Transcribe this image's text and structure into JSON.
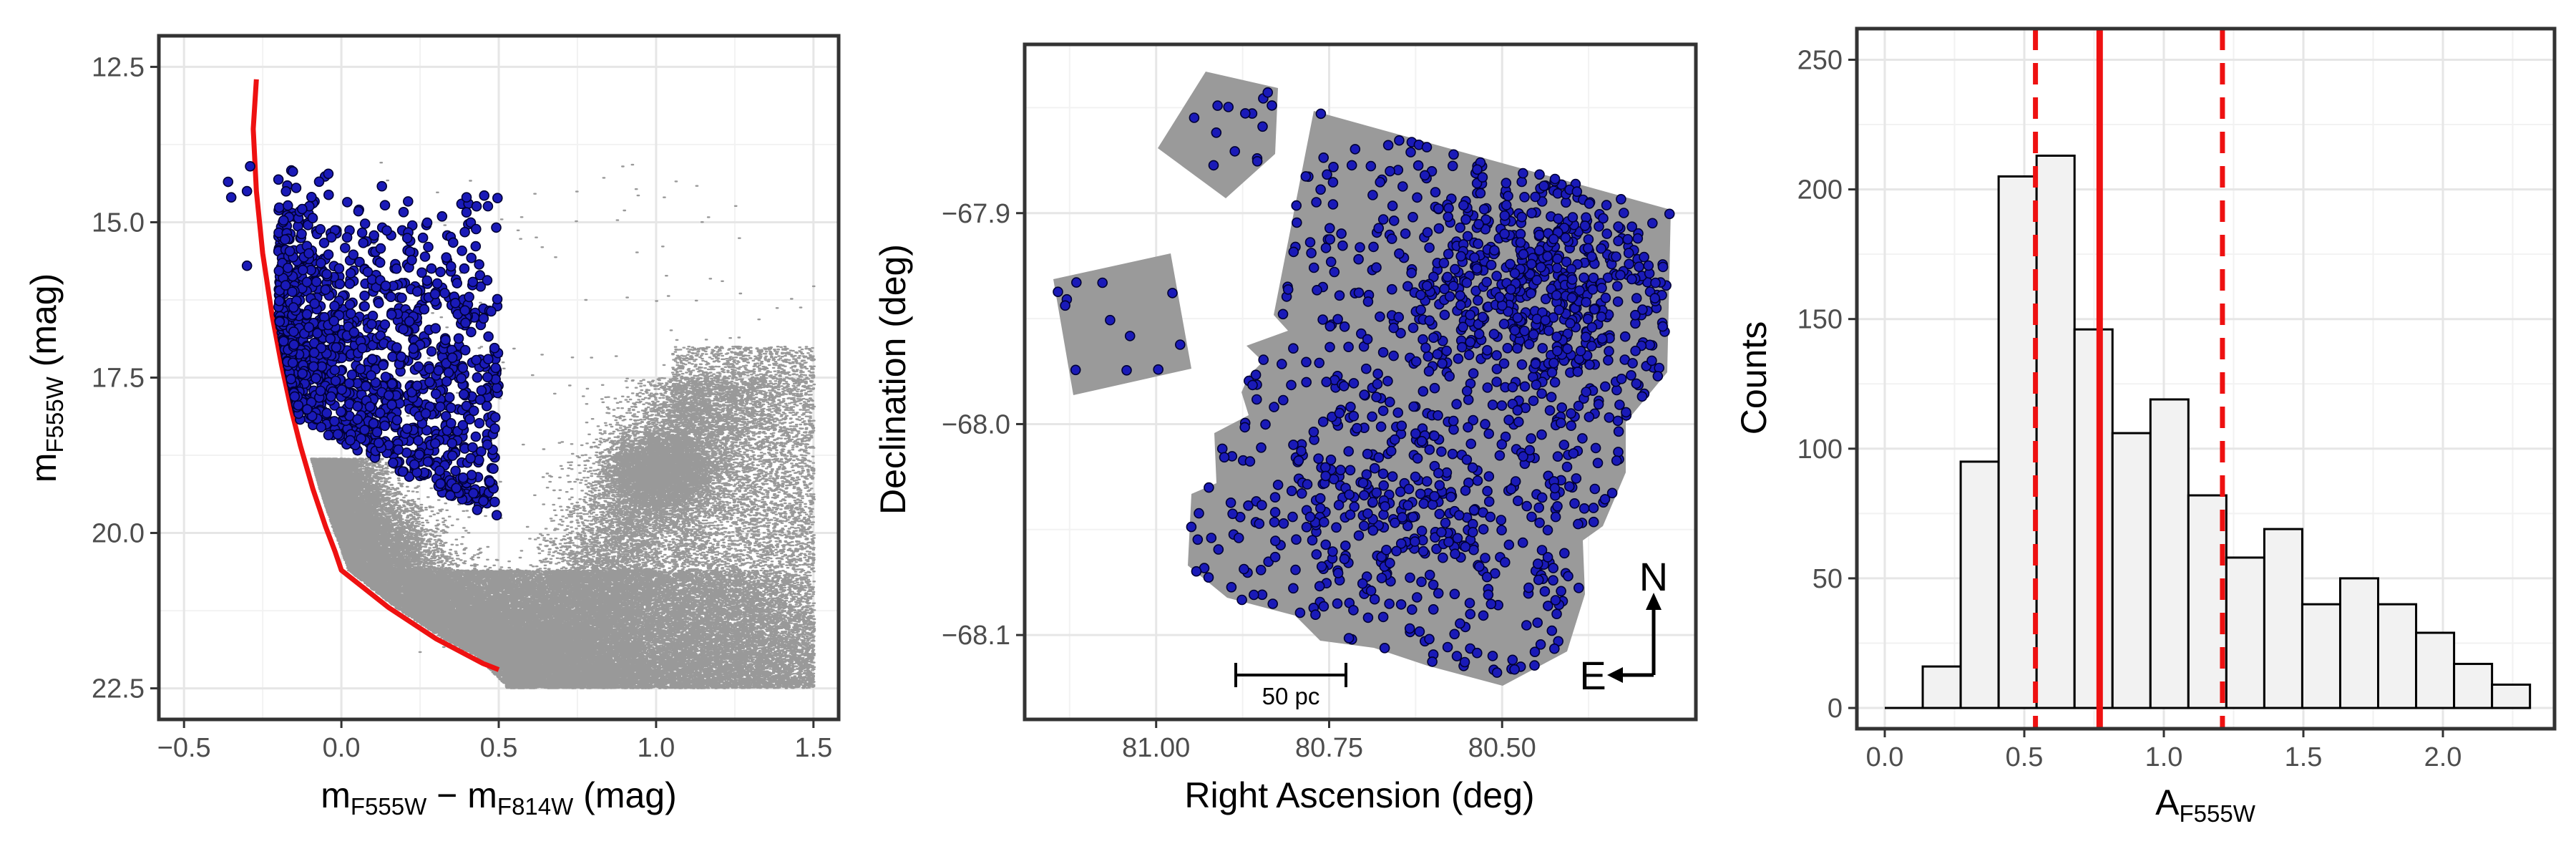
{
  "chart_data": [
    {
      "type": "scatter",
      "xlabel": {
        "main": "m",
        "sub1": "F555W",
        "minus": " − m",
        "sub2": "F814W",
        "unit": " (mag)"
      },
      "ylabel": {
        "main": "m",
        "sub": "F555W",
        "unit": " (mag)"
      },
      "xlim": [
        -0.58,
        1.58
      ],
      "ylim": [
        23.0,
        12.0
      ],
      "y_reversed": true,
      "xticks": [
        -0.5,
        0.0,
        0.5,
        1.0,
        1.5
      ],
      "xtick_labels": [
        "−0.5",
        "0.0",
        "0.5",
        "1.0",
        "1.5"
      ],
      "yticks": [
        12.5,
        15.0,
        17.5,
        20.0,
        22.5
      ],
      "ytick_labels": [
        "12.5",
        "15.0",
        "17.5",
        "20.0",
        "22.5"
      ],
      "grid": true,
      "isochrone": {
        "color": "#ee1111",
        "x": [
          -0.27,
          -0.28,
          -0.27,
          -0.25,
          -0.22,
          -0.19,
          -0.16,
          -0.13,
          -0.09,
          -0.05,
          -0.02,
          0.0,
          0.05,
          0.15,
          0.3,
          0.45,
          0.5
        ],
        "y": [
          12.7,
          13.5,
          14.5,
          15.5,
          16.5,
          17.3,
          18.0,
          18.6,
          19.3,
          19.9,
          20.3,
          20.6,
          20.8,
          21.2,
          21.7,
          22.1,
          22.2
        ]
      },
      "selected_stars": {
        "color": "#1a1ab8",
        "edge": "#000033",
        "count_approx": 1300
      },
      "field_stars": {
        "color": "#999999"
      }
    },
    {
      "type": "scatter",
      "xlabel": "Right Ascension (deg)",
      "ylabel": "Declination (deg)",
      "xlim": [
        81.19,
        80.22
      ],
      "ylim": [
        -68.14,
        -67.82
      ],
      "x_reversed": true,
      "xticks": [
        81.0,
        80.75,
        80.5
      ],
      "xtick_labels": [
        "81.00",
        "80.75",
        "80.50"
      ],
      "yticks": [
        -67.9,
        -68.0,
        -68.1
      ],
      "ytick_labels": [
        "−67.9",
        "−68.0",
        "−68.1"
      ],
      "grid": true,
      "footprint_color": "#9a9a9a",
      "star_color": "#1a1ab8",
      "scale_bar": {
        "label": "50 pc",
        "x": [
          80.89,
          80.74
        ],
        "y": -68.12
      },
      "compass": {
        "north": "N",
        "east": "E"
      }
    },
    {
      "type": "bar",
      "xlabel": {
        "main": "A",
        "sub": "F555W"
      },
      "ylabel": "Counts",
      "xlim": [
        -0.1,
        2.4
      ],
      "ylim": [
        -8,
        262
      ],
      "xticks": [
        0.0,
        0.5,
        1.0,
        1.5,
        2.0
      ],
      "xtick_labels": [
        "0.0",
        "0.5",
        "1.0",
        "1.5",
        "2.0"
      ],
      "yticks": [
        0,
        50,
        100,
        150,
        200,
        250
      ],
      "ytick_labels": [
        "0",
        "50",
        "100",
        "150",
        "200",
        "250"
      ],
      "grid": true,
      "bin_width": 0.136,
      "bin_start": 0.0,
      "values": [
        0,
        16,
        95,
        205,
        213,
        146,
        106,
        119,
        82,
        58,
        69,
        40,
        50,
        40,
        29,
        17,
        9
      ],
      "bar_fill": "#f2f2f2",
      "bar_edge": "#000000",
      "median_line": {
        "x": 0.77,
        "color": "#ee1111"
      },
      "percentile_lines": {
        "x": [
          0.54,
          1.21
        ],
        "color": "#ee1111"
      }
    }
  ]
}
